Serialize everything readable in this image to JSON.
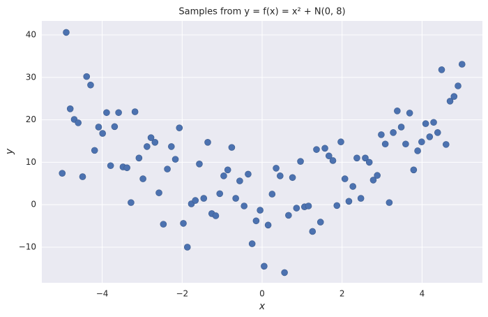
{
  "chart_data": {
    "type": "scatter",
    "title": "Samples from y = f(x) = x² + N(0, 8)",
    "x_label": "x",
    "y_label": "y",
    "color": "#4c72b0",
    "grid": true,
    "xlim": [
      -5.51,
      5.51
    ],
    "ylim": [
      -18.4,
      43.3
    ],
    "xticks": [
      {
        "value": -4,
        "label": "−4"
      },
      {
        "value": -2,
        "label": "−2"
      },
      0,
      2,
      4
    ],
    "yticks": [
      {
        "value": -10,
        "label": "−10"
      },
      0,
      10,
      20,
      30,
      40
    ],
    "x": [
      -5.0,
      -4.9,
      -4.8,
      -4.7,
      -4.6,
      -4.49,
      -4.39,
      -4.29,
      -4.19,
      -4.09,
      -3.99,
      -3.89,
      -3.79,
      -3.69,
      -3.59,
      -3.48,
      -3.38,
      -3.28,
      -3.18,
      -3.08,
      -2.98,
      -2.88,
      -2.78,
      -2.68,
      -2.58,
      -2.47,
      -2.37,
      -2.27,
      -2.17,
      -2.07,
      -1.97,
      -1.87,
      -1.77,
      -1.67,
      -1.57,
      -1.46,
      -1.36,
      -1.26,
      -1.16,
      -1.06,
      -0.96,
      -0.86,
      -0.76,
      -0.66,
      -0.56,
      -0.45,
      -0.35,
      -0.25,
      -0.15,
      -0.05,
      0.05,
      0.15,
      0.25,
      0.35,
      0.45,
      0.56,
      0.66,
      0.76,
      0.86,
      0.96,
      1.06,
      1.16,
      1.26,
      1.36,
      1.46,
      1.57,
      1.67,
      1.77,
      1.87,
      1.97,
      2.07,
      2.17,
      2.27,
      2.37,
      2.47,
      2.58,
      2.68,
      2.78,
      2.88,
      2.98,
      3.08,
      3.18,
      3.28,
      3.38,
      3.48,
      3.59,
      3.69,
      3.79,
      3.89,
      3.99,
      4.09,
      4.19,
      4.29,
      4.39,
      4.49,
      4.6,
      4.7,
      4.8,
      4.9,
      5.0
    ],
    "y": [
      7.4,
      40.6,
      22.6,
      20.1,
      19.3,
      6.6,
      30.2,
      28.2,
      12.8,
      18.3,
      16.8,
      21.7,
      9.2,
      18.4,
      21.7,
      8.9,
      8.7,
      0.5,
      21.9,
      11.0,
      6.1,
      13.7,
      15.8,
      14.7,
      2.8,
      -4.6,
      8.4,
      13.7,
      10.7,
      18.1,
      -4.4,
      -10.0,
      0.2,
      1.0,
      9.6,
      1.5,
      14.7,
      -2.1,
      -2.6,
      2.6,
      6.8,
      8.2,
      13.5,
      1.5,
      5.6,
      -0.3,
      7.2,
      -9.2,
      -3.8,
      -1.3,
      -14.5,
      -4.8,
      2.5,
      8.6,
      6.8,
      -16.0,
      -2.5,
      6.4,
      -0.8,
      10.2,
      -0.5,
      -0.3,
      -6.3,
      13.0,
      -4.1,
      13.3,
      11.5,
      10.4,
      -0.2,
      14.8,
      6.1,
      0.8,
      4.3,
      11.0,
      1.5,
      11.0,
      10.0,
      5.8,
      6.9,
      16.5,
      14.3,
      0.5,
      17.0,
      22.1,
      18.3,
      14.3,
      21.6,
      8.2,
      12.7,
      14.8,
      19.1,
      16.0,
      19.4,
      17.0,
      31.8,
      14.2,
      24.4,
      25.5,
      28.0,
      33.1
    ]
  }
}
